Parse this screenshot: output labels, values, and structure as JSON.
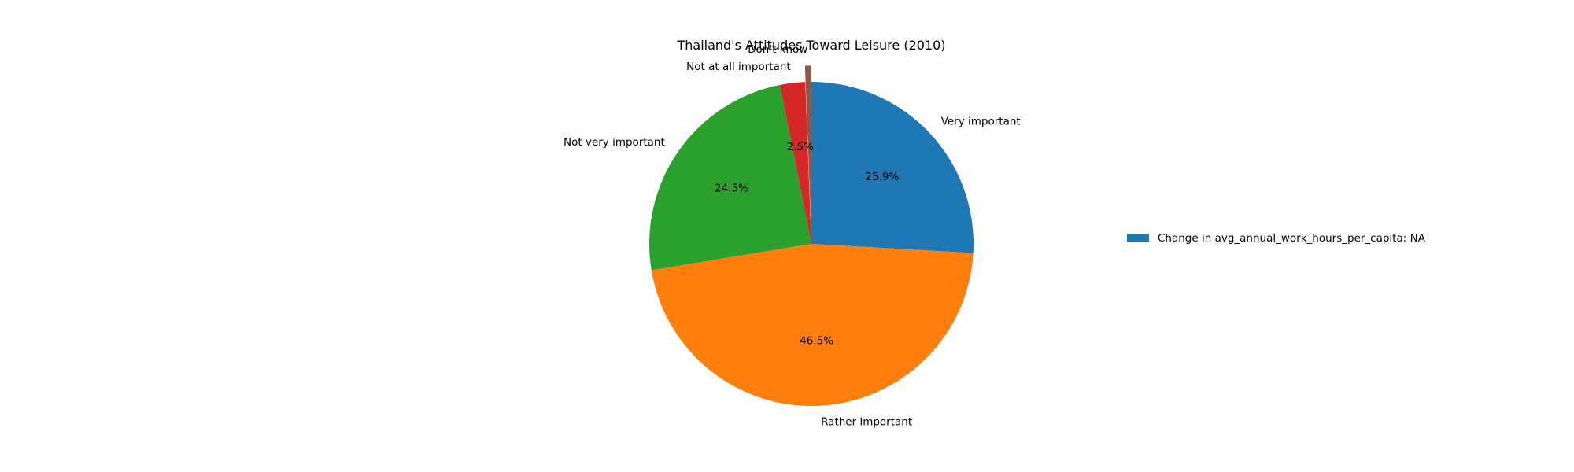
{
  "chart_data": {
    "type": "pie",
    "title": "Thailand's Attitudes Toward Leisure (2010)",
    "start_angle_deg": 90,
    "direction": "clockwise",
    "slices": [
      {
        "label": "Very important",
        "value": 25.9,
        "pct_label": "25.9%",
        "color": "#1f77b4"
      },
      {
        "label": "Rather important",
        "value": 46.5,
        "pct_label": "46.5%",
        "color": "#ff7f0e"
      },
      {
        "label": "Not very important",
        "value": 24.5,
        "pct_label": "24.5%",
        "color": "#2ca02c"
      },
      {
        "label": "Not at all important",
        "value": 2.5,
        "pct_label": "2.5%",
        "color": "#d62728"
      },
      {
        "label": "Don't know",
        "value": 0.6,
        "pct_label": "",
        "color": "#8c564b"
      }
    ],
    "exploded": [
      "Don't know"
    ],
    "legend": {
      "placement": "right",
      "entries": [
        {
          "label": "Change in avg_annual_work_hours_per_capita: NA",
          "color": "#1f77b4"
        }
      ]
    }
  }
}
